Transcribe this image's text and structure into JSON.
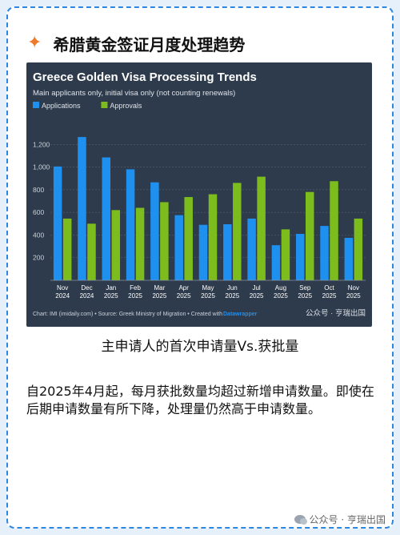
{
  "page": {
    "title": "希腊黄金签证月度处理趋势",
    "caption": "主申请人的首次申请量Vs.获批量",
    "body": "自2025年4月起，每月获批数量均超过新增申请数量。即使在后期申请数量有所下降，处理量仍然高于申请数量。",
    "footer_watermark": "公众号 · 亨瑞出国",
    "icons": {
      "header": "sparkle-icon",
      "watermark": "wechat-icon"
    }
  },
  "chart_data": {
    "type": "bar",
    "title": "Greece Golden Visa Processing Trends",
    "subtitle": "Main applicants only, initial visa only (not counting renewals)",
    "categories": [
      "Nov\n2024",
      "Dec\n2024",
      "Jan\n2025",
      "Feb\n2025",
      "Mar\n2025",
      "Apr\n2025",
      "May\n2025",
      "Jun\n2025",
      "Jul\n2025",
      "Aug\n2025",
      "Sep\n2025",
      "Oct\n2025",
      "Nov\n2025"
    ],
    "series": [
      {
        "name": "Applications",
        "color": "#1e90f0",
        "values": [
          1005,
          1265,
          1085,
          980,
          865,
          575,
          490,
          495,
          545,
          310,
          410,
          480,
          375
        ]
      },
      {
        "name": "Approvals",
        "color": "#7cbc1c",
        "values": [
          545,
          500,
          620,
          640,
          690,
          735,
          760,
          860,
          915,
          450,
          780,
          875,
          545
        ]
      }
    ],
    "yticks": [
      "200",
      "400",
      "600",
      "800",
      "1,000",
      "1,200"
    ],
    "ylim": [
      0,
      1400
    ],
    "grid": true,
    "legend": "top-left",
    "source": "Chart: IMI (imidaily.com) • Source: Greek Ministry of Migration • Created with",
    "brand": "Datawrapper",
    "watermark": "公众号 · 亨瑞出国"
  }
}
